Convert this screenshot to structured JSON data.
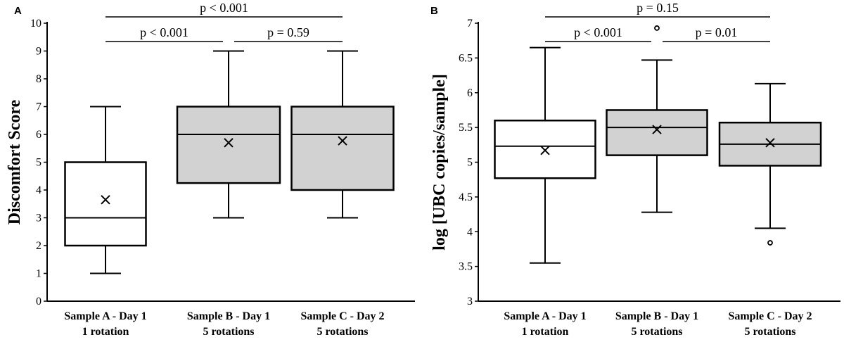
{
  "chart_data": [
    {
      "type": "box",
      "panel_label": "A",
      "ylabel": "Discomfort Score",
      "xlabel": "",
      "ylim": [
        0,
        10
      ],
      "yticks": [
        "0",
        "1",
        "2",
        "3",
        "4",
        "5",
        "6",
        "7",
        "8",
        "9",
        "10"
      ],
      "categories": [
        {
          "line1": "Sample A - Day 1",
          "line2": "1 rotation"
        },
        {
          "line1": "Sample B - Day 1",
          "line2": "5 rotations"
        },
        {
          "line1": "Sample C - Day 2",
          "line2": "5 rotations"
        }
      ],
      "boxes": [
        {
          "min": 1,
          "q1": 2,
          "median": 3,
          "q3": 5,
          "max": 7,
          "mean": 3.65,
          "fill": "#ffffff",
          "outliers": []
        },
        {
          "min": 3,
          "q1": 4.25,
          "median": 6,
          "q3": 7,
          "max": 9,
          "mean": 5.7,
          "fill": "#d3d2d2",
          "outliers": []
        },
        {
          "min": 3,
          "q1": 4,
          "median": 6,
          "q3": 7,
          "max": 9,
          "mean": 5.77,
          "fill": "#d3d2d2",
          "outliers": []
        }
      ],
      "comparisons": [
        {
          "from": 0,
          "to": 2,
          "label": "p < 0.001",
          "level": "top"
        },
        {
          "from": 0,
          "to": 1,
          "label": "p < 0.001",
          "level": "lower"
        },
        {
          "from": 1,
          "to": 2,
          "label": "p = 0.59",
          "level": "lower"
        }
      ],
      "grid": false
    },
    {
      "type": "box",
      "panel_label": "B",
      "ylabel": "log [UBC copies/sample]",
      "xlabel": "",
      "ylim": [
        3,
        7
      ],
      "yticks": [
        "3",
        "3.5",
        "4",
        "4.5",
        "5",
        "5.5",
        "6",
        "6.5",
        "7"
      ],
      "categories": [
        {
          "line1": "Sample A - Day 1",
          "line2": "1 rotation"
        },
        {
          "line1": "Sample B - Day 1",
          "line2": "5 rotations"
        },
        {
          "line1": "Sample C - Day 2",
          "line2": "5 rotations"
        }
      ],
      "boxes": [
        {
          "min": 3.55,
          "q1": 4.77,
          "median": 5.23,
          "q3": 5.6,
          "max": 6.65,
          "mean": 5.17,
          "fill": "#ffffff",
          "outliers": []
        },
        {
          "min": 4.28,
          "q1": 5.1,
          "median": 5.5,
          "q3": 5.75,
          "max": 6.47,
          "mean": 5.47,
          "fill": "#d3d2d2",
          "outliers": [
            6.93
          ]
        },
        {
          "min": 4.05,
          "q1": 4.95,
          "median": 5.26,
          "q3": 5.57,
          "max": 6.13,
          "mean": 5.28,
          "fill": "#d3d2d2",
          "outliers": [
            3.84
          ]
        }
      ],
      "comparisons": [
        {
          "from": 0,
          "to": 2,
          "label": "p = 0.15",
          "level": "top"
        },
        {
          "from": 0,
          "to": 1,
          "label": "p < 0.001",
          "level": "lower"
        },
        {
          "from": 1,
          "to": 2,
          "label": "p = 0.01",
          "level": "lower"
        }
      ],
      "grid": false
    }
  ]
}
